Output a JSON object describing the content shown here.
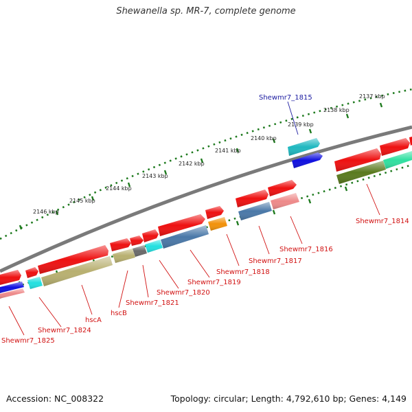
{
  "title": "Shewanella sp. MR-7, complete genome",
  "footer": {
    "accession": "Accession: NC_008322",
    "summary": "Topology: circular; Length: 4,792,610 bp; Genes: 4,149"
  },
  "scale": {
    "unit": "kbp",
    "ticks": [
      {
        "label": "2137 kbp"
      },
      {
        "label": "2138 kbp"
      },
      {
        "label": "2139 kbp"
      },
      {
        "label": "2140 kbp"
      },
      {
        "label": "2141 kbp"
      },
      {
        "label": "2142 kbp"
      },
      {
        "label": "2143 kbp"
      },
      {
        "label": "2144 kbp"
      },
      {
        "label": "2145 kbp"
      },
      {
        "label": "2146 kbp"
      }
    ]
  },
  "genes": [
    {
      "label": "Shewmr7_1815",
      "color": "#1a1aa0"
    },
    {
      "label": "Shewmr7_1814",
      "color": "#d11111"
    },
    {
      "label": "Shewmr7_1816",
      "color": "#d11111"
    },
    {
      "label": "Shewmr7_1817",
      "color": "#d11111"
    },
    {
      "label": "Shewmr7_1818",
      "color": "#d11111"
    },
    {
      "label": "Shewmr7_1819",
      "color": "#d11111"
    },
    {
      "label": "Shewmr7_1820",
      "color": "#d11111"
    },
    {
      "label": "Shewmr7_1821",
      "color": "#d11111"
    },
    {
      "label": "hscB",
      "color": "#d11111"
    },
    {
      "label": "hscA",
      "color": "#d11111"
    },
    {
      "label": "Shewmr7_1824",
      "color": "#d11111"
    },
    {
      "label": "Shewmr7_1825",
      "color": "#d11111"
    }
  ],
  "colors": {
    "backbone": "#7a7a7a",
    "tick": "#1e7a1e",
    "cds_forward": "#ee1111",
    "olive": "#b8b070",
    "darkolive": "#5a7a1e",
    "steelblue": "#4a78a8",
    "cyan": "#22e0e0",
    "teal": "#20b8c0",
    "pink": "#ee8a8a",
    "orange": "#f2920a",
    "blue": "#1010e0",
    "gray": "#6a6a6a",
    "mint": "#30e0a0"
  }
}
